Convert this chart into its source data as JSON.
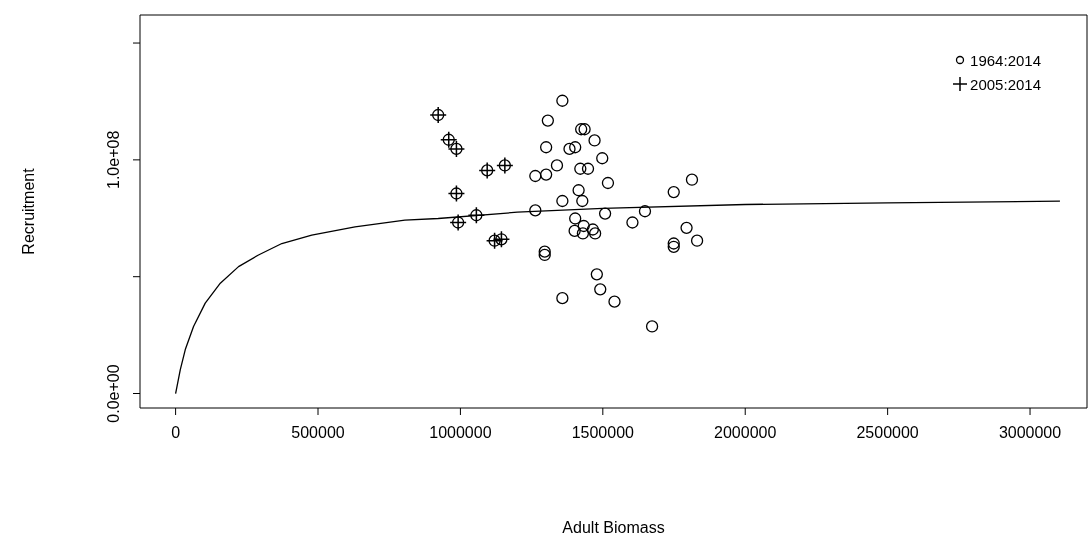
{
  "chart_data": {
    "type": "scatter",
    "xlabel": "Adult Biomass",
    "ylabel": "Recruitment",
    "xlim": [
      -125000,
      3200000
    ],
    "ylim": [
      -6200000,
      162000000
    ],
    "xticks": [
      0,
      500000,
      1000000,
      1500000,
      2000000,
      2500000,
      3000000
    ],
    "yticks": [
      {
        "value": 0,
        "label": "0.0e+00"
      },
      {
        "value": 50000000,
        "label": null
      },
      {
        "value": 100000000,
        "label": "1.0e+08"
      },
      {
        "value": 150000000,
        "label": null
      }
    ],
    "grid": false,
    "legend": "top right",
    "series": [
      {
        "name": "1964:2014",
        "marker": "circle",
        "color": "#000000",
        "x": [
          922000,
          959000,
          986000,
          1094000,
          1156000,
          986000,
          992000,
          1056000,
          1120000,
          1144000,
          1358000,
          1307000,
          1424000,
          1436000,
          1471000,
          1301000,
          1383000,
          1403000,
          1498000,
          1339000,
          1421000,
          1448000,
          1263000,
          1301000,
          1518000,
          1415000,
          1358000,
          1428000,
          1263000,
          1508000,
          1403000,
          1401000,
          1433000,
          1430000,
          1465000,
          1473000,
          1296000,
          1296000,
          1479000,
          1491000,
          1358000,
          1541000,
          1673000,
          1604000,
          1648000,
          1749000,
          1813000,
          1794000,
          1831000,
          1749000,
          1749000
        ],
        "values": [
          119200000,
          108600000,
          104700000,
          95500000,
          97600000,
          85600000,
          73200000,
          76300000,
          65400000,
          66000000,
          125300000,
          116800000,
          113100000,
          113100000,
          108300000,
          105400000,
          104700000,
          105400000,
          100700000,
          97600000,
          96200000,
          96200000,
          93100000,
          93700000,
          90100000,
          87000000,
          82400000,
          82400000,
          78400000,
          77000000,
          74900000,
          69600000,
          71700000,
          68500000,
          70200000,
          68500000,
          60700000,
          59300000,
          51000000,
          44600000,
          40800000,
          39300000,
          28700000,
          73200000,
          78000000,
          86200000,
          91500000,
          70900000,
          65400000,
          64200000,
          62800000
        ]
      },
      {
        "name": "2005:2014",
        "marker": "cross",
        "color": "#000000",
        "x": [
          922000,
          959000,
          986000,
          1094000,
          1156000,
          986000,
          992000,
          1056000,
          1120000,
          1144000
        ],
        "values": [
          119200000,
          108600000,
          104700000,
          95500000,
          97600000,
          85600000,
          73200000,
          76300000,
          65400000,
          66000000
        ]
      },
      {
        "type": "line",
        "marker": "none",
        "line_style": "solid",
        "color": "#000000",
        "x": [
          0,
          16500,
          34000,
          63000,
          104000,
          157000,
          221000,
          291000,
          373000,
          478000,
          630000,
          805000,
          922000,
          1200000,
          1500000,
          2000000,
          2500000,
          3105000
        ],
        "values": [
          0,
          10200000,
          18800000,
          28700000,
          38700000,
          47200000,
          54300000,
          59300000,
          64200000,
          67800000,
          71300000,
          74200000,
          74900000,
          77600000,
          79200000,
          80900000,
          81600000,
          82300000
        ]
      }
    ]
  }
}
